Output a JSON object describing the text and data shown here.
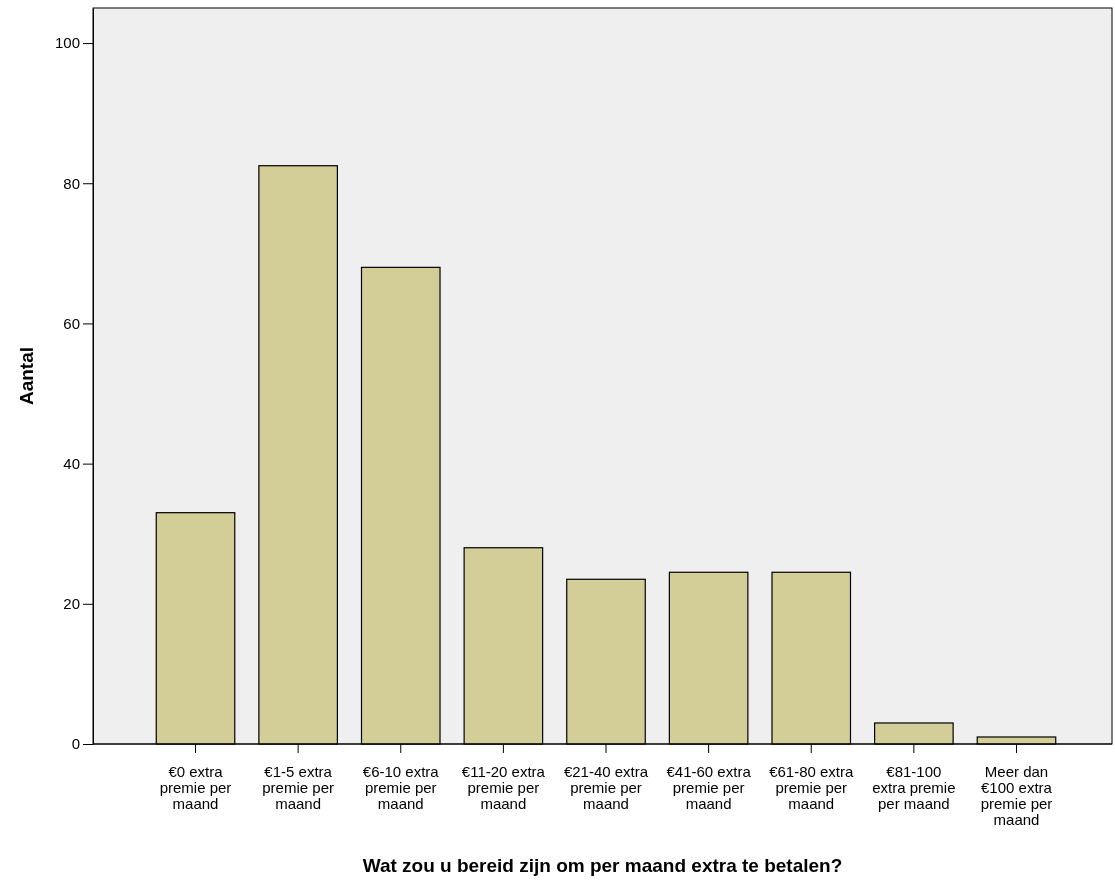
{
  "chart_data": {
    "type": "bar",
    "xlabel": "Wat zou u bereid zijn om per maand extra te betalen?",
    "ylabel": "Aantal",
    "categories": [
      "€0 extra premie per maand",
      "€1-5 extra premie per maand",
      "€6-10 extra premie per maand",
      "€11-20 extra premie per maand",
      "€21-40 extra premie per maand",
      "€41-60 extra premie per maand",
      "€61-80 extra premie per maand",
      "€81-100 extra premie per maand",
      "Meer dan €100 extra premie per maand"
    ],
    "values": [
      33,
      82.5,
      68,
      28,
      23.5,
      24.5,
      24.5,
      3,
      1
    ],
    "color": "#d3ce97",
    "ylim": [
      0,
      105
    ],
    "yticks": [
      0,
      20,
      40,
      60,
      80,
      100
    ],
    "grid": false
  }
}
